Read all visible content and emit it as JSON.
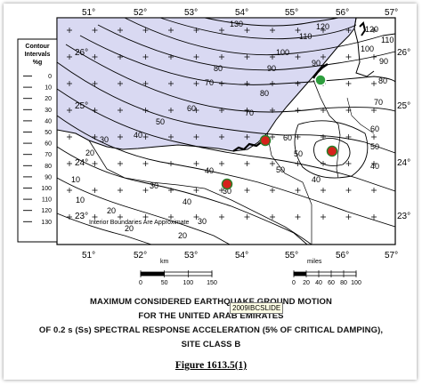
{
  "map": {
    "lon_ticks": [
      "51°",
      "52°",
      "53°",
      "54°",
      "55°",
      "56°",
      "57°"
    ],
    "lat_ticks_left": [
      "26°",
      "25°",
      "24°",
      "23°"
    ],
    "lat_ticks_right": [
      "26°",
      "25°",
      "24°",
      "23°"
    ],
    "legend_title": "Contour\nIntervals\n%g",
    "legend_values": [
      "0",
      "10",
      "20",
      "30",
      "40",
      "50",
      "60",
      "70",
      "80",
      "90",
      "100",
      "110",
      "120",
      "130"
    ],
    "contour_labels": [
      "120",
      "110",
      "100",
      "90",
      "80",
      "70",
      "60",
      "50",
      "40",
      "30",
      "20",
      "10",
      "90",
      "80",
      "70",
      "60",
      "50",
      "40",
      "30",
      "20",
      "10",
      "40",
      "50",
      "60",
      "70",
      "80",
      "90",
      "100",
      "110",
      "120",
      "30",
      "20",
      "50",
      "40",
      "40",
      "30",
      "20",
      "130"
    ],
    "interior_note": "Interior Boundaries Are Approximate",
    "scale_km_label": "km",
    "scale_miles_label": "miles",
    "scale_km_ticks": [
      "0",
      "50",
      "100",
      "150"
    ],
    "scale_miles_ticks": [
      "0",
      "20",
      "40",
      "60",
      "80",
      "100"
    ],
    "sea_color": "#d9d9f2",
    "land_color": "#ffffff",
    "markers": [
      {
        "color": "#2e9e3e",
        "label": "green-site"
      },
      {
        "color": "#d6221b",
        "label": "red-site"
      },
      {
        "color": "#d6221b",
        "label": "red-site"
      },
      {
        "color": "#d6221b",
        "label": "red-site"
      }
    ]
  },
  "caption": {
    "line1": "MAXIMUM CONSIDERED EARTHQUAKE GROUND MOTION",
    "line2": "FOR THE UNITED ARAB EMIRATES",
    "line3": "OF 0.2 s (Ss) SPECTRAL RESPONSE ACCELERATION (5% OF CRITICAL DAMPING),",
    "line4": "SITE CLASS B"
  },
  "tooltip": "2009IBCSLIDE",
  "figure_label": "Figure 1613.5(1)"
}
